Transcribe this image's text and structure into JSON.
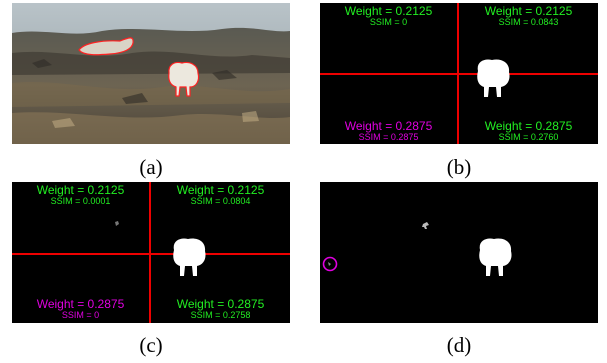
{
  "captions": {
    "a": "(a)",
    "b": "(b)",
    "c": "(c)",
    "d": "(d)"
  },
  "panel_b": {
    "tl": {
      "weight": "Weight = 0.2125",
      "ssim": "SSIM = 0"
    },
    "tr": {
      "weight": "Weight = 0.2125",
      "ssim": "SSIM = 0.0843"
    },
    "bl": {
      "weight": "Weight = 0.2875",
      "ssim": "SSIM = 0.2875"
    },
    "br": {
      "weight": "Weight = 0.2875",
      "ssim": "SSIM = 0.2760"
    }
  },
  "panel_c": {
    "tl": {
      "weight": "Weight = 0.2125",
      "ssim": "SSIM = 0.0001"
    },
    "tr": {
      "weight": "Weight = 0.2125",
      "ssim": "SSIM = 0.0804"
    },
    "bl": {
      "weight": "Weight = 0.2875",
      "ssim": "SSIM = 0"
    },
    "br": {
      "weight": "Weight = 0.2875",
      "ssim": "SSIM = 0.2758"
    }
  },
  "colors": {
    "green_text": "#22ee22",
    "magenta_text": "#e000e0",
    "crosshair": "#ee0000",
    "mask_background": "#000000",
    "mask_foreground": "#ffffff"
  }
}
